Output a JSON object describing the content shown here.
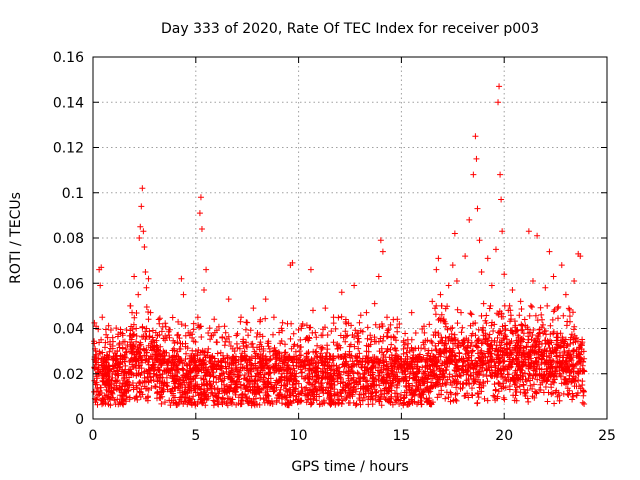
{
  "chart_data": {
    "type": "scatter",
    "title": "Day 333 of 2020, Rate Of TEC Index for receiver p003",
    "xlabel": "GPS time / hours",
    "ylabel": "ROTI / TECUs",
    "xlim": [
      0,
      25
    ],
    "ylim": [
      0,
      0.16
    ],
    "x_ticks": [
      0,
      5,
      10,
      15,
      20,
      25
    ],
    "y_ticks": [
      0,
      0.02,
      0.04,
      0.06,
      0.08,
      0.1,
      0.12,
      0.14,
      0.16
    ],
    "x_tick_labels": [
      "0",
      "5",
      "10",
      "15",
      "20",
      "25"
    ],
    "y_tick_labels": [
      "0",
      "0.02",
      "0.04",
      "0.06",
      "0.08",
      "0.1",
      "0.12",
      "0.14",
      "0.16"
    ],
    "grid": true,
    "marker": "plus",
    "color": "#ff0000",
    "series": [
      {
        "values_xy": [
          [
            0.05,
            0.012
          ],
          [
            0.1,
            0.031
          ],
          [
            0.15,
            0.041
          ],
          [
            0.2,
            0.018
          ],
          [
            0.25,
            0.025
          ],
          [
            0.3,
            0.066
          ],
          [
            0.35,
            0.059
          ],
          [
            0.4,
            0.067
          ],
          [
            0.45,
            0.045
          ],
          [
            0.5,
            0.022
          ],
          [
            0.6,
            0.015
          ],
          [
            0.7,
            0.028
          ],
          [
            0.8,
            0.019
          ],
          [
            0.9,
            0.012
          ],
          [
            1.0,
            0.026
          ],
          [
            1.1,
            0.017
          ],
          [
            1.2,
            0.024
          ],
          [
            1.3,
            0.013
          ],
          [
            1.4,
            0.021
          ],
          [
            1.5,
            0.018
          ],
          [
            1.6,
            0.027
          ],
          [
            1.7,
            0.015
          ],
          [
            1.8,
            0.034
          ],
          [
            1.9,
            0.047
          ],
          [
            2.0,
            0.063
          ],
          [
            2.1,
            0.04
          ],
          [
            2.2,
            0.055
          ],
          [
            2.25,
            0.08
          ],
          [
            2.3,
            0.085
          ],
          [
            2.35,
            0.094
          ],
          [
            2.4,
            0.102
          ],
          [
            2.45,
            0.083
          ],
          [
            2.5,
            0.076
          ],
          [
            2.55,
            0.065
          ],
          [
            2.6,
            0.058
          ],
          [
            2.7,
            0.062
          ],
          [
            2.8,
            0.047
          ],
          [
            2.9,
            0.036
          ],
          [
            3.0,
            0.022
          ],
          [
            3.2,
            0.044
          ],
          [
            3.4,
            0.028
          ],
          [
            3.6,
            0.016
          ],
          [
            3.8,
            0.025
          ],
          [
            4.0,
            0.014
          ],
          [
            4.2,
            0.031
          ],
          [
            4.3,
            0.062
          ],
          [
            4.4,
            0.055
          ],
          [
            4.5,
            0.032
          ],
          [
            4.7,
            0.024
          ],
          [
            4.9,
            0.018
          ],
          [
            5.0,
            0.03
          ],
          [
            5.1,
            0.045
          ],
          [
            5.2,
            0.091
          ],
          [
            5.25,
            0.098
          ],
          [
            5.3,
            0.084
          ],
          [
            5.4,
            0.057
          ],
          [
            5.5,
            0.066
          ],
          [
            5.6,
            0.038
          ],
          [
            5.8,
            0.027
          ],
          [
            6.0,
            0.034
          ],
          [
            6.2,
            0.019
          ],
          [
            6.4,
            0.041
          ],
          [
            6.6,
            0.053
          ],
          [
            6.8,
            0.031
          ],
          [
            7.0,
            0.022
          ],
          [
            7.2,
            0.045
          ],
          [
            7.4,
            0.028
          ],
          [
            7.6,
            0.017
          ],
          [
            7.8,
            0.049
          ],
          [
            8.0,
            0.038
          ],
          [
            8.2,
            0.024
          ],
          [
            8.4,
            0.053
          ],
          [
            8.6,
            0.031
          ],
          [
            8.8,
            0.045
          ],
          [
            9.0,
            0.027
          ],
          [
            9.2,
            0.039
          ],
          [
            9.4,
            0.018
          ],
          [
            9.6,
            0.068
          ],
          [
            9.7,
            0.069
          ],
          [
            9.8,
            0.033
          ],
          [
            10.0,
            0.026
          ],
          [
            10.2,
            0.042
          ],
          [
            10.4,
            0.029
          ],
          [
            10.6,
            0.066
          ],
          [
            10.7,
            0.048
          ],
          [
            10.9,
            0.021
          ],
          [
            11.1,
            0.037
          ],
          [
            11.3,
            0.049
          ],
          [
            11.5,
            0.023
          ],
          [
            11.7,
            0.045
          ],
          [
            11.9,
            0.031
          ],
          [
            12.1,
            0.056
          ],
          [
            12.3,
            0.044
          ],
          [
            12.5,
            0.028
          ],
          [
            12.7,
            0.059
          ],
          [
            12.9,
            0.038
          ],
          [
            13.1,
            0.024
          ],
          [
            13.3,
            0.047
          ],
          [
            13.5,
            0.033
          ],
          [
            13.7,
            0.051
          ],
          [
            13.9,
            0.063
          ],
          [
            14.0,
            0.079
          ],
          [
            14.1,
            0.074
          ],
          [
            14.3,
            0.045
          ],
          [
            14.5,
            0.036
          ],
          [
            14.7,
            0.028
          ],
          [
            14.9,
            0.042
          ],
          [
            15.1,
            0.031
          ],
          [
            15.3,
            0.022
          ],
          [
            15.5,
            0.047
          ],
          [
            15.7,
            0.038
          ],
          [
            15.9,
            0.026
          ],
          [
            16.1,
            0.041
          ],
          [
            16.3,
            0.029
          ],
          [
            16.5,
            0.052
          ],
          [
            16.7,
            0.066
          ],
          [
            16.8,
            0.071
          ],
          [
            16.9,
            0.055
          ],
          [
            17.1,
            0.043
          ],
          [
            17.3,
            0.059
          ],
          [
            17.5,
            0.068
          ],
          [
            17.6,
            0.082
          ],
          [
            17.7,
            0.061
          ],
          [
            17.9,
            0.047
          ],
          [
            18.1,
            0.072
          ],
          [
            18.3,
            0.088
          ],
          [
            18.5,
            0.108
          ],
          [
            18.6,
            0.125
          ],
          [
            18.65,
            0.115
          ],
          [
            18.7,
            0.093
          ],
          [
            18.8,
            0.079
          ],
          [
            18.9,
            0.065
          ],
          [
            19.0,
            0.051
          ],
          [
            19.2,
            0.071
          ],
          [
            19.4,
            0.059
          ],
          [
            19.6,
            0.075
          ],
          [
            19.7,
            0.14
          ],
          [
            19.75,
            0.147
          ],
          [
            19.8,
            0.108
          ],
          [
            19.85,
            0.097
          ],
          [
            19.9,
            0.083
          ],
          [
            20.0,
            0.064
          ],
          [
            20.2,
            0.048
          ],
          [
            20.4,
            0.057
          ],
          [
            20.6,
            0.039
          ],
          [
            20.8,
            0.052
          ],
          [
            21.0,
            0.044
          ],
          [
            21.2,
            0.083
          ],
          [
            21.4,
            0.061
          ],
          [
            21.6,
            0.081
          ],
          [
            21.8,
            0.046
          ],
          [
            22.0,
            0.058
          ],
          [
            22.2,
            0.074
          ],
          [
            22.4,
            0.063
          ],
          [
            22.6,
            0.049
          ],
          [
            22.8,
            0.068
          ],
          [
            23.0,
            0.055
          ],
          [
            23.2,
            0.043
          ],
          [
            23.4,
            0.061
          ],
          [
            23.6,
            0.073
          ],
          [
            23.7,
            0.072
          ],
          [
            23.8,
            0.034
          ],
          [
            23.85,
            0.012
          ],
          [
            23.9,
            0.021
          ]
        ]
      }
    ]
  }
}
